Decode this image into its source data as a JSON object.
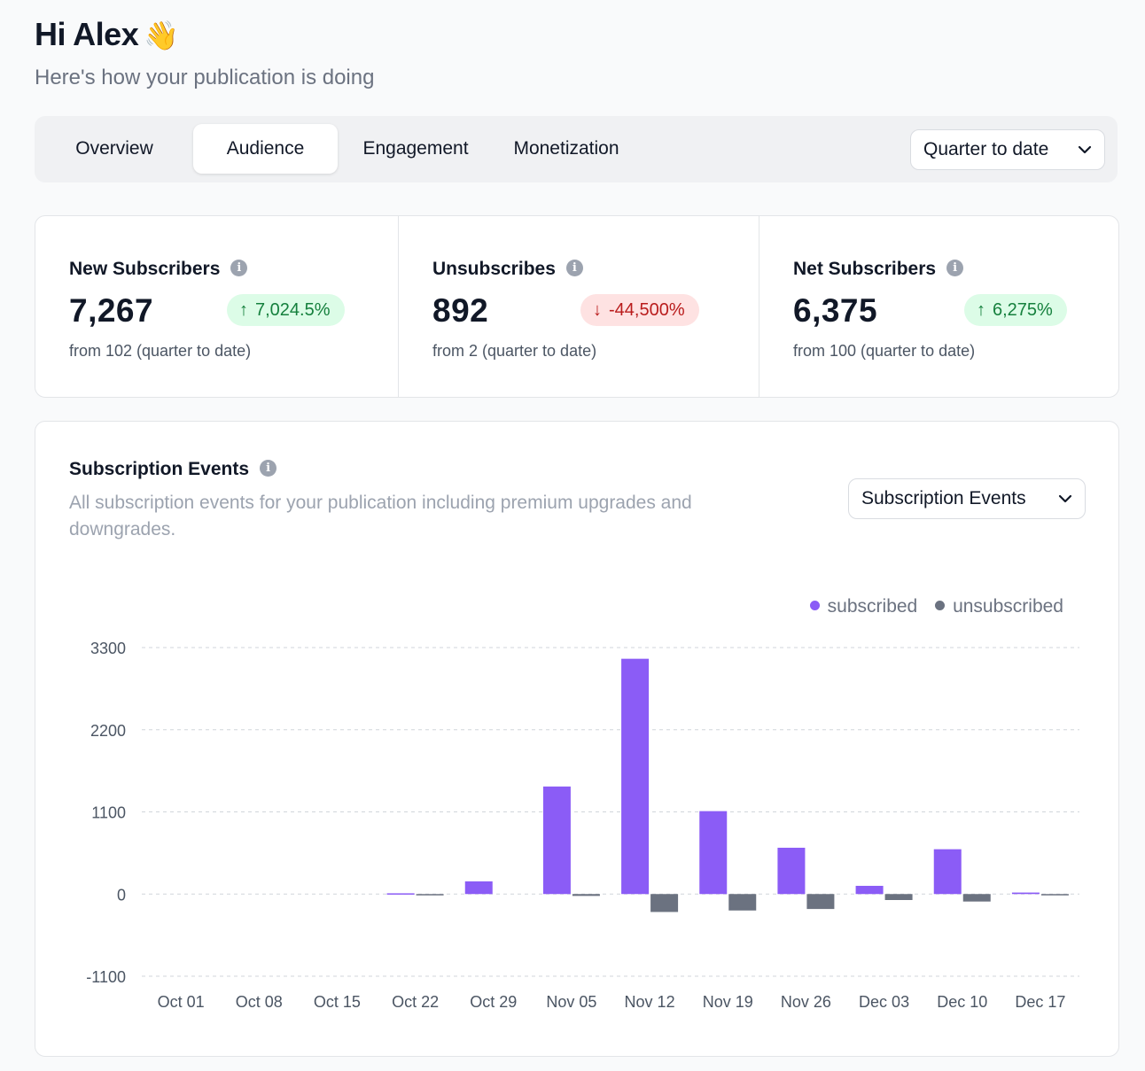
{
  "header": {
    "greeting": "Hi Alex",
    "wave_emoji": "👋",
    "subtitle": "Here's how your publication is doing"
  },
  "tabs": [
    {
      "label": "Overview",
      "active": false
    },
    {
      "label": "Audience",
      "active": true
    },
    {
      "label": "Engagement",
      "active": false
    },
    {
      "label": "Monetization",
      "active": false
    }
  ],
  "date_range": {
    "selected": "Quarter to date"
  },
  "stats": [
    {
      "label": "New Subscribers",
      "value": "7,267",
      "change": "7,024.5%",
      "direction": "up",
      "from": "from 102 (quarter to date)"
    },
    {
      "label": "Unsubscribes",
      "value": "892",
      "change": "-44,500%",
      "direction": "down",
      "from": "from 2 (quarter to date)"
    },
    {
      "label": "Net Subscribers",
      "value": "6,375",
      "change": "6,275%",
      "direction": "up",
      "from": "from 100 (quarter to date)"
    }
  ],
  "chart_card": {
    "title": "Subscription Events",
    "description": "All subscription events for your publication including premium upgrades and downgrades.",
    "metric_select": "Subscription Events"
  },
  "colors": {
    "subscribed": "#8b5cf6",
    "unsubscribed": "#6b7280",
    "up_text": "#15803d",
    "down_text": "#b91c1c"
  },
  "chart_data": {
    "type": "bar",
    "title": "Subscription Events",
    "xlabel": "",
    "ylabel": "",
    "ylim": [
      -1100,
      3300
    ],
    "yticks": [
      3300,
      2200,
      1100,
      0,
      -1100
    ],
    "grid": true,
    "legend_position": "top-right",
    "categories": [
      "Oct 01",
      "Oct 08",
      "Oct 15",
      "Oct 22",
      "Oct 29",
      "Nov 05",
      "Nov 12",
      "Nov 19",
      "Nov 26",
      "Dec 03",
      "Dec 10",
      "Dec 17"
    ],
    "series": [
      {
        "name": "subscribed",
        "values": [
          0,
          0,
          0,
          10,
          170,
          1440,
          3150,
          1110,
          620,
          110,
          600,
          20
        ]
      },
      {
        "name": "unsubscribed",
        "values": [
          0,
          0,
          0,
          -5,
          0,
          -25,
          -240,
          -220,
          -200,
          -80,
          -100,
          -15
        ]
      }
    ]
  }
}
